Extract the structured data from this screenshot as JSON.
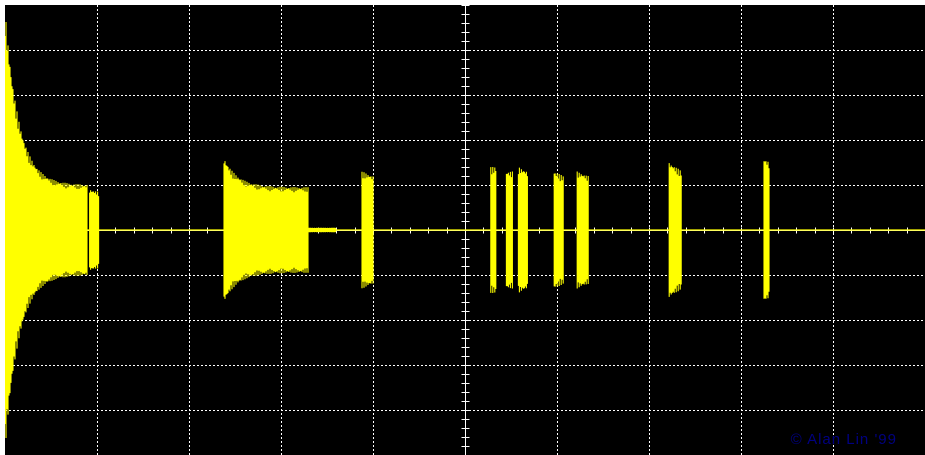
{
  "watermark": "© Alan Lin '99",
  "colors": {
    "background": "#000000",
    "grid": "#ffffff",
    "trace": "#ffff00",
    "watermark": "#000080"
  },
  "chart_data": {
    "type": "waveform",
    "grid": true,
    "grid_divisions": {
      "x": 10,
      "y": 10
    },
    "center_axes_minor_ticks_per_division": 5,
    "xlim": [
      0,
      10
    ],
    "ylim": [
      -5,
      5
    ],
    "units": "divisions",
    "baseline": 0,
    "bursts": [
      {
        "start": 0.0,
        "end": 0.9,
        "peak_amplitude": 4.9,
        "settle_amplitude": 1.0,
        "shape": "decay"
      },
      {
        "start": 0.92,
        "end": 1.02,
        "peak_amplitude": 0.9,
        "settle_amplitude": 0.85,
        "shape": "flat"
      },
      {
        "start": 2.38,
        "end": 3.3,
        "peak_amplitude": 1.6,
        "settle_amplitude": 0.95,
        "shape": "decay"
      },
      {
        "start": 3.3,
        "end": 3.6,
        "peak_amplitude": 0.05,
        "settle_amplitude": 0.05,
        "shape": "flat"
      },
      {
        "start": 3.88,
        "end": 4.0,
        "peak_amplitude": 1.3,
        "settle_amplitude": 1.2,
        "shape": "flat"
      },
      {
        "start": 5.28,
        "end": 5.34,
        "peak_amplitude": 1.4,
        "settle_amplitude": 1.4,
        "shape": "flat"
      },
      {
        "start": 5.45,
        "end": 5.52,
        "peak_amplitude": 1.3,
        "settle_amplitude": 1.3,
        "shape": "flat"
      },
      {
        "start": 5.58,
        "end": 5.68,
        "peak_amplitude": 1.4,
        "settle_amplitude": 1.3,
        "shape": "flat"
      },
      {
        "start": 5.97,
        "end": 6.07,
        "peak_amplitude": 1.3,
        "settle_amplitude": 1.2,
        "shape": "flat"
      },
      {
        "start": 6.22,
        "end": 6.34,
        "peak_amplitude": 1.3,
        "settle_amplitude": 1.2,
        "shape": "flat"
      },
      {
        "start": 7.22,
        "end": 7.36,
        "peak_amplitude": 1.5,
        "settle_amplitude": 1.3,
        "shape": "flat"
      },
      {
        "start": 8.25,
        "end": 8.31,
        "peak_amplitude": 1.6,
        "settle_amplitude": 1.5,
        "shape": "flat"
      }
    ]
  }
}
